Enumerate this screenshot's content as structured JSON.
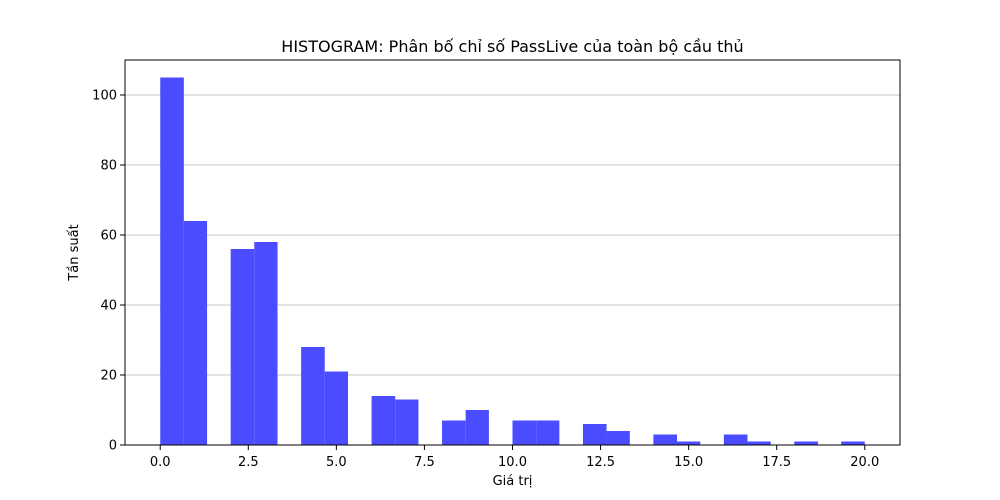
{
  "chart_data": {
    "type": "bar",
    "title": "HISTOGRAM: Phân bố chỉ số PassLive của toàn bộ cầu thủ",
    "xlabel": "Giá trị",
    "ylabel": "Tần suất",
    "xlim": [
      -1.0,
      21.0
    ],
    "ylim": [
      0,
      110
    ],
    "x_ticks": [
      0.0,
      2.5,
      5.0,
      7.5,
      10.0,
      12.5,
      15.0,
      17.5,
      20.0
    ],
    "x_tick_labels": [
      "0.0",
      "2.5",
      "5.0",
      "7.5",
      "10.0",
      "12.5",
      "15.0",
      "17.5",
      "20.0"
    ],
    "y_ticks": [
      0,
      20,
      40,
      60,
      80,
      100
    ],
    "y_tick_labels": [
      "0",
      "20",
      "40",
      "60",
      "80",
      "100"
    ],
    "grid": "y",
    "bar_color": "#4b4bff",
    "bins": [
      {
        "x0": 0.0,
        "x1": 0.67,
        "count": 105
      },
      {
        "x0": 0.67,
        "x1": 1.33,
        "count": 64
      },
      {
        "x0": 1.33,
        "x1": 2.0,
        "count": 0
      },
      {
        "x0": 2.0,
        "x1": 2.67,
        "count": 56
      },
      {
        "x0": 2.67,
        "x1": 3.33,
        "count": 58
      },
      {
        "x0": 3.33,
        "x1": 4.0,
        "count": 0
      },
      {
        "x0": 4.0,
        "x1": 4.67,
        "count": 28
      },
      {
        "x0": 4.67,
        "x1": 5.33,
        "count": 21
      },
      {
        "x0": 5.33,
        "x1": 6.0,
        "count": 0
      },
      {
        "x0": 6.0,
        "x1": 6.67,
        "count": 14
      },
      {
        "x0": 6.67,
        "x1": 7.33,
        "count": 13
      },
      {
        "x0": 7.33,
        "x1": 8.0,
        "count": 0
      },
      {
        "x0": 8.0,
        "x1": 8.67,
        "count": 7
      },
      {
        "x0": 8.67,
        "x1": 9.33,
        "count": 10
      },
      {
        "x0": 9.33,
        "x1": 10.0,
        "count": 0
      },
      {
        "x0": 10.0,
        "x1": 10.67,
        "count": 7
      },
      {
        "x0": 10.67,
        "x1": 11.33,
        "count": 7
      },
      {
        "x0": 11.33,
        "x1": 12.0,
        "count": 0
      },
      {
        "x0": 12.0,
        "x1": 12.67,
        "count": 6
      },
      {
        "x0": 12.67,
        "x1": 13.33,
        "count": 4
      },
      {
        "x0": 13.33,
        "x1": 14.0,
        "count": 0
      },
      {
        "x0": 14.0,
        "x1": 14.67,
        "count": 3
      },
      {
        "x0": 14.67,
        "x1": 15.33,
        "count": 1
      },
      {
        "x0": 15.33,
        "x1": 16.0,
        "count": 0
      },
      {
        "x0": 16.0,
        "x1": 16.67,
        "count": 3
      },
      {
        "x0": 16.67,
        "x1": 17.33,
        "count": 1
      },
      {
        "x0": 17.33,
        "x1": 18.0,
        "count": 0
      },
      {
        "x0": 18.0,
        "x1": 18.67,
        "count": 1
      },
      {
        "x0": 18.67,
        "x1": 19.33,
        "count": 0
      },
      {
        "x0": 19.33,
        "x1": 20.0,
        "count": 1
      }
    ]
  }
}
